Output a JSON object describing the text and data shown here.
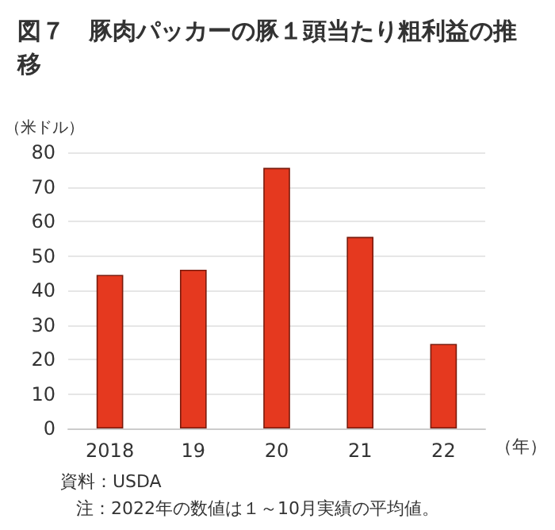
{
  "chart_data": {
    "type": "bar",
    "title": "図７　豚肉パッカーの豚１頭当たり粗利益の推移",
    "ylabel": "（米ドル）",
    "xlabel": "（年）",
    "categories": [
      "2018",
      "19",
      "20",
      "21",
      "22"
    ],
    "values": [
      44.5,
      46,
      75.5,
      55.5,
      24.5
    ],
    "color": "#e5391f",
    "ylim": [
      0,
      80
    ],
    "yticks": [
      0,
      10,
      20,
      30,
      40,
      50,
      60,
      70,
      80
    ],
    "grid": "y",
    "annotations": [
      "資料：USDA",
      "注：2022年の数値は１～10月実績の平均値。"
    ]
  }
}
